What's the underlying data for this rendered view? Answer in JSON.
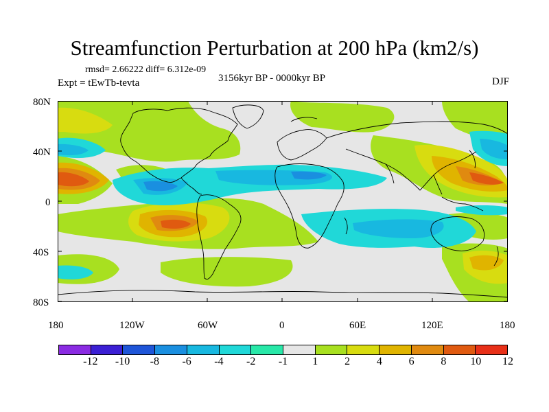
{
  "title": "Streamfunction Perturbation at 200 hPa (km2/s)",
  "stats": "rmsd= 2.66222 diff= 6.312e-09",
  "experiment": "Expt = tEwTb-tevta",
  "period": "3156kyr BP - 0000kyr BP",
  "season": "DJF",
  "lat_labels": [
    "80N",
    "40N",
    "0",
    "40S",
    "80S"
  ],
  "lon_labels": [
    "180",
    "120W",
    "60W",
    "0",
    "60E",
    "120E",
    "180"
  ],
  "colorbar": {
    "colors": [
      "#8a2be2",
      "#3b1fd4",
      "#1e55d8",
      "#1a8fe0",
      "#18b8e0",
      "#20d8d8",
      "#28e8a8",
      "#e6e6e6",
      "#a8e020",
      "#d8dc10",
      "#e0b400",
      "#e08a10",
      "#e05a10",
      "#e83018"
    ],
    "labels": [
      "-12",
      "-10",
      "-8",
      "-6",
      "-4",
      "-2",
      "-1",
      "1",
      "2",
      "4",
      "6",
      "8",
      "10",
      "12"
    ]
  }
}
